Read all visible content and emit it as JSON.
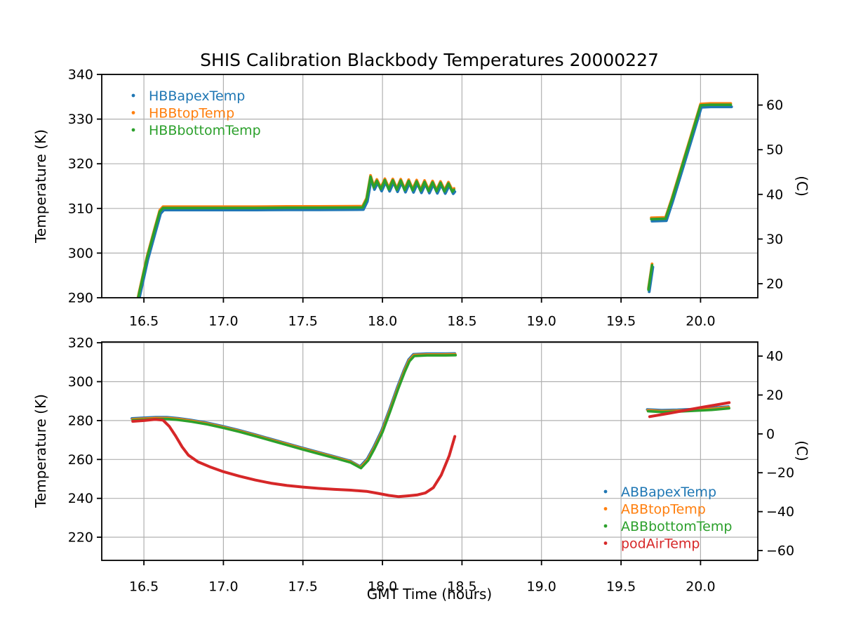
{
  "title": "SHIS Calibration Blackbody Temperatures 20000227",
  "xlabel": "GMT Time (hours)",
  "ylabel_left": "Temperature (K)",
  "ylabel_right": "(C)",
  "colors": {
    "blue": "#1f77b4",
    "orange": "#ff7f0e",
    "green": "#2ca02c",
    "red": "#d62728",
    "grid": "#b0b0b0",
    "spine": "#000000",
    "text": "#000000"
  },
  "chart_data": [
    {
      "id": "hbb-plot",
      "type": "scatter",
      "marker": "point",
      "grid": true,
      "xlim": [
        16.235,
        20.36
      ],
      "ylim": [
        290,
        340
      ],
      "xticks": {
        "values": [
          16.5,
          17.0,
          17.5,
          18.0,
          18.5,
          19.0,
          19.5,
          20.0
        ],
        "labels": [
          "16.5",
          "17.0",
          "17.5",
          "18.0",
          "18.5",
          "19.0",
          "19.5",
          "20.0"
        ],
        "show_labels": true
      },
      "yticks": {
        "values": [
          290,
          300,
          310,
          320,
          330,
          340
        ],
        "labels": [
          "290",
          "300",
          "310",
          "320",
          "330",
          "340"
        ]
      },
      "right_ticks": {
        "values": [
          20,
          30,
          40,
          50,
          60
        ],
        "labels": [
          "20",
          "30",
          "40",
          "50",
          "60"
        ],
        "offset_K": 273.15
      },
      "legend": {
        "loc": "upper left",
        "entries": [
          {
            "label": "HBBapexTemp",
            "color": "#1f77b4"
          },
          {
            "label": "HBBtopTemp",
            "color": "#ff7f0e"
          },
          {
            "label": "HBBbottomTemp",
            "color": "#2ca02c"
          }
        ]
      },
      "groups": [
        {
          "segments": [
            [
              [
                16.43,
                284.0
              ],
              [
                16.47,
                291.0
              ],
              [
                16.52,
                299.0
              ],
              [
                16.57,
                305.5
              ],
              [
                16.6,
                309.3
              ],
              [
                16.62,
                310.1
              ],
              [
                16.8,
                310.1
              ],
              [
                17.0,
                310.1
              ],
              [
                17.2,
                310.1
              ],
              [
                17.4,
                310.15
              ],
              [
                17.6,
                310.15
              ],
              [
                17.875,
                310.2
              ],
              [
                17.9,
                312.0
              ],
              [
                17.925,
                317.1
              ],
              [
                17.945,
                314.7
              ],
              [
                17.965,
                316.2
              ],
              [
                17.99,
                314.35
              ],
              [
                18.015,
                316.35
              ],
              [
                18.04,
                314.3
              ],
              [
                18.065,
                316.3
              ],
              [
                18.09,
                314.2
              ],
              [
                18.115,
                316.25
              ],
              [
                18.14,
                314.1
              ],
              [
                18.165,
                316.15
              ],
              [
                18.19,
                314.05
              ],
              [
                18.215,
                316.05
              ],
              [
                18.24,
                313.95
              ],
              [
                18.265,
                315.95
              ],
              [
                18.29,
                313.9
              ],
              [
                18.315,
                315.85
              ],
              [
                18.34,
                313.85
              ],
              [
                18.365,
                315.75
              ],
              [
                18.39,
                313.8
              ],
              [
                18.415,
                315.6
              ],
              [
                18.44,
                313.75
              ],
              [
                18.45,
                314.2
              ]
            ],
            [
              [
                19.672,
                291.8
              ],
              [
                19.695,
                297.3
              ]
            ],
            [
              [
                19.69,
                307.6
              ],
              [
                19.78,
                307.7
              ],
              [
                19.82,
                312.0
              ],
              [
                19.88,
                319.0
              ],
              [
                19.94,
                326.0
              ],
              [
                20.0,
                333.1
              ],
              [
                20.06,
                333.2
              ],
              [
                20.19,
                333.2
              ]
            ]
          ],
          "series": [
            {
              "name": "HBBapexTemp",
              "color": "#1f77b4",
              "dx": 0.005,
              "dy": -0.45,
              "lw": 4.0
            },
            {
              "name": "HBBtopTemp",
              "color": "#ff7f0e",
              "dx": 0.0,
              "dy": 0.3,
              "lw": 3.8
            },
            {
              "name": "HBBbottomTemp",
              "color": "#2ca02c",
              "dx": 0.0,
              "dy": 0.0,
              "lw": 3.6
            }
          ]
        }
      ]
    },
    {
      "id": "abb-plot",
      "type": "scatter",
      "marker": "point",
      "grid": true,
      "xlim": [
        16.235,
        20.36
      ],
      "ylim": [
        208.1,
        320.4
      ],
      "xticks": {
        "values": [
          16.5,
          17.0,
          17.5,
          18.0,
          18.5,
          19.0,
          19.5,
          20.0
        ],
        "labels": [
          "16.5",
          "17.0",
          "17.5",
          "18.0",
          "18.5",
          "19.0",
          "19.5",
          "20.0"
        ],
        "show_labels": true
      },
      "yticks": {
        "values": [
          220,
          240,
          260,
          280,
          300,
          320
        ],
        "labels": [
          "220",
          "240",
          "260",
          "280",
          "300",
          "320"
        ]
      },
      "right_ticks": {
        "values": [
          -60,
          -40,
          -20,
          0,
          20,
          40
        ],
        "labels": [
          "−60",
          "−40",
          "−20",
          "0",
          "20",
          "40"
        ],
        "offset_K": 273.15
      },
      "legend": {
        "loc": "lower right",
        "entries": [
          {
            "label": "ABBapexTemp",
            "color": "#1f77b4"
          },
          {
            "label": "ABBtopTemp",
            "color": "#ff7f0e"
          },
          {
            "label": "ABBbottomTemp",
            "color": "#2ca02c"
          },
          {
            "label": "podAirTemp",
            "color": "#d62728"
          }
        ]
      },
      "groups": [
        {
          "segments": [
            [
              [
                16.43,
                280.2
              ],
              [
                16.5,
                280.5
              ],
              [
                16.58,
                280.8
              ],
              [
                16.65,
                280.8
              ],
              [
                16.72,
                280.3
              ],
              [
                16.8,
                279.4
              ],
              [
                16.9,
                278.0
              ],
              [
                17.0,
                276.2
              ],
              [
                17.1,
                274.2
              ],
              [
                17.2,
                272.0
              ],
              [
                17.3,
                269.7
              ],
              [
                17.4,
                267.4
              ],
              [
                17.5,
                265.1
              ],
              [
                17.6,
                262.9
              ],
              [
                17.7,
                260.7
              ],
              [
                17.8,
                258.4
              ],
              [
                17.865,
                255.5
              ],
              [
                17.91,
                259.5
              ],
              [
                17.95,
                265.5
              ],
              [
                18.0,
                274.0
              ],
              [
                18.05,
                285.0
              ],
              [
                18.1,
                296.5
              ],
              [
                18.14,
                305.0
              ],
              [
                18.17,
                310.5
              ],
              [
                18.2,
                313.2
              ],
              [
                18.28,
                313.5
              ],
              [
                18.38,
                313.5
              ],
              [
                18.46,
                313.6
              ]
            ],
            [
              [
                19.67,
                284.8
              ],
              [
                19.76,
                284.4
              ],
              [
                19.86,
                284.6
              ],
              [
                19.96,
                285.0
              ],
              [
                20.07,
                285.5
              ],
              [
                20.18,
                286.3
              ]
            ]
          ],
          "series": [
            {
              "name": "ABBapexTemp",
              "color": "#1f77b4",
              "dx": -0.005,
              "dy": 0.85,
              "lw": 4.0
            },
            {
              "name": "ABBtopTemp",
              "color": "#ff7f0e",
              "dx": -0.002,
              "dy": 0.45,
              "lw": 3.8
            },
            {
              "name": "ABBbottomTemp",
              "color": "#2ca02c",
              "dx": 0.0,
              "dy": 0.0,
              "lw": 3.6
            }
          ]
        },
        {
          "segments": [
            [
              [
                16.43,
                279.6
              ],
              [
                16.5,
                280.0
              ],
              [
                16.57,
                280.6
              ],
              [
                16.62,
                280.2
              ],
              [
                16.66,
                277.0
              ],
              [
                16.7,
                272.0
              ],
              [
                16.74,
                266.5
              ],
              [
                16.78,
                262.2
              ],
              [
                16.84,
                258.8
              ],
              [
                16.92,
                256.0
              ],
              [
                17.0,
                253.7
              ],
              [
                17.1,
                251.4
              ],
              [
                17.2,
                249.4
              ],
              [
                17.3,
                247.8
              ],
              [
                17.4,
                246.6
              ],
              [
                17.5,
                245.8
              ],
              [
                17.6,
                245.1
              ],
              [
                17.7,
                244.6
              ],
              [
                17.8,
                244.2
              ],
              [
                17.9,
                243.6
              ],
              [
                17.97,
                242.6
              ],
              [
                18.04,
                241.5
              ],
              [
                18.1,
                240.9
              ],
              [
                18.16,
                241.3
              ],
              [
                18.22,
                241.8
              ],
              [
                18.27,
                242.8
              ],
              [
                18.32,
                245.5
              ],
              [
                18.37,
                252.0
              ],
              [
                18.42,
                262.0
              ],
              [
                18.455,
                271.8
              ]
            ],
            [
              [
                19.68,
                282.0
              ],
              [
                19.8,
                283.7
              ],
              [
                19.9,
                285.2
              ],
              [
                20.0,
                286.7
              ],
              [
                20.1,
                288.1
              ],
              [
                20.18,
                289.2
              ]
            ]
          ],
          "series": [
            {
              "name": "podAirTemp",
              "color": "#d62728",
              "dx": 0.0,
              "dy": 0.0,
              "lw": 4.0
            }
          ]
        }
      ]
    }
  ]
}
